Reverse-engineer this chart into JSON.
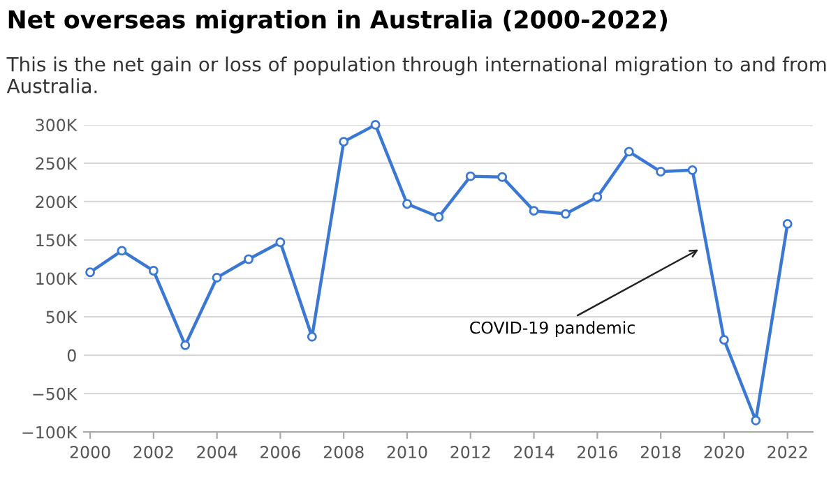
{
  "chart_data": {
    "type": "line",
    "title": "Net overseas migration in Australia (2000-2022)",
    "subtitle": "This is the net gain or loss of population through international migration to and from Australia.",
    "x": [
      2000,
      2001,
      2002,
      2003,
      2004,
      2005,
      2006,
      2007,
      2008,
      2009,
      2010,
      2011,
      2012,
      2013,
      2014,
      2015,
      2016,
      2017,
      2018,
      2019,
      2020,
      2021,
      2022
    ],
    "series": [
      {
        "color": "#3b78d4",
        "values": [
          108000,
          136000,
          110000,
          13000,
          101000,
          125000,
          147000,
          24000,
          278000,
          300000,
          197000,
          180000,
          233000,
          232000,
          188000,
          184000,
          206000,
          265000,
          239000,
          241000,
          20000,
          -85000,
          171000
        ]
      }
    ],
    "xlim": [
      1999.8,
      2022.8
    ],
    "xticks": [
      2000,
      2002,
      2004,
      2006,
      2008,
      2010,
      2012,
      2014,
      2016,
      2018,
      2020,
      2022
    ],
    "ylim": [
      -100000,
      300000
    ],
    "yticks": [
      {
        "value": -100000,
        "label": "−100K"
      },
      {
        "value": -50000,
        "label": "−50K"
      },
      {
        "value": 0,
        "label": "0"
      },
      {
        "value": 50000,
        "label": "50K"
      },
      {
        "value": 100000,
        "label": "100K"
      },
      {
        "value": 150000,
        "label": "150K"
      },
      {
        "value": 200000,
        "label": "200K"
      },
      {
        "value": 250000,
        "label": "250K"
      },
      {
        "value": 300000,
        "label": "300K"
      }
    ],
    "grid": "y",
    "marker": "circle",
    "line_style": "solid",
    "legend": false,
    "annotations": [
      {
        "text": "COVID-19 pandemic",
        "x": 2019.3,
        "y": 140000
      }
    ]
  }
}
